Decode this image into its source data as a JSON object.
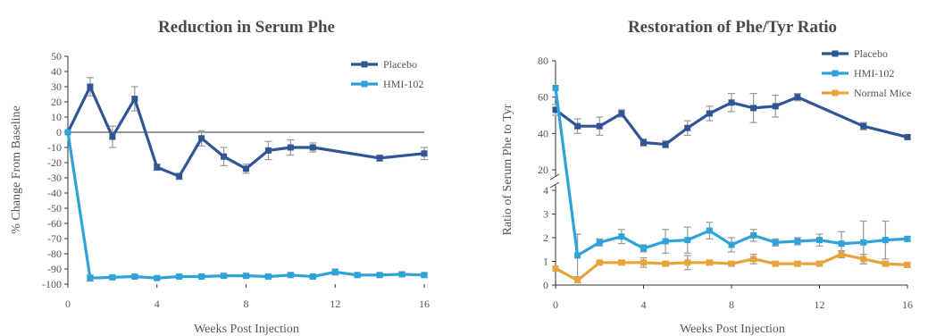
{
  "colors": {
    "placebo": "#2f5597",
    "hmi": "#2ea3d9",
    "normal": "#e8a33a",
    "axis": "#333333",
    "error": "#999999"
  },
  "chart_data": [
    {
      "type": "line",
      "title": "Reduction in Serum Phe",
      "xlabel": "Weeks Post Injection",
      "ylabel": "% Change From Baseline",
      "xlim": [
        0,
        16
      ],
      "ylim": [
        -100,
        50
      ],
      "xticks": [
        "0",
        "4",
        "8",
        "12",
        "16"
      ],
      "yticks": [
        "50",
        "40",
        "30",
        "20",
        "10",
        "0",
        "-10",
        "-20",
        "-30",
        "-40",
        "-50",
        "-60",
        "-70",
        "-80",
        "-90",
        "-100"
      ],
      "legend_position": "top-right",
      "series": [
        {
          "name": "Placebo",
          "x": [
            0,
            1,
            2,
            3,
            4,
            5,
            6,
            7,
            8,
            9,
            10,
            11,
            14,
            16
          ],
          "y": [
            0,
            30,
            -3,
            22,
            -23,
            -29,
            -4,
            -16,
            -24,
            -12,
            -10,
            -10,
            -17,
            -14
          ],
          "err": [
            0,
            6,
            7,
            8,
            2,
            2,
            5,
            6,
            3,
            6,
            5,
            3,
            2,
            4
          ]
        },
        {
          "name": "HMI-102",
          "x": [
            0,
            1,
            2,
            3,
            4,
            5,
            6,
            7,
            8,
            9,
            10,
            11,
            12,
            13,
            14,
            15,
            16
          ],
          "y": [
            0,
            -96,
            -95.5,
            -95,
            -96,
            -95,
            -95,
            -94.5,
            -94.5,
            -95,
            -94,
            -95,
            -92,
            -94,
            -94,
            -93.5,
            -94
          ],
          "err": [
            0,
            2,
            1,
            1,
            1,
            1,
            1,
            1,
            1,
            1,
            1,
            1,
            2,
            1,
            1,
            1,
            1
          ]
        }
      ]
    },
    {
      "type": "line",
      "title": "Restoration of Phe/Tyr Ratio",
      "xlabel": "Weeks Post Injection",
      "ylabel": "Ratio of Serum Phe to Tyr",
      "xlim": [
        0,
        16
      ],
      "ylim": [
        0,
        80
      ],
      "y_axis_break": [
        4,
        20
      ],
      "xticks": [
        "0",
        "4",
        "8",
        "12",
        "16"
      ],
      "yticks_upper": [
        "80",
        "60",
        "40",
        "20"
      ],
      "yticks_lower": [
        "4",
        "3",
        "2",
        "1",
        "0"
      ],
      "legend_position": "top-right",
      "series": [
        {
          "name": "Placebo",
          "x": [
            0,
            1,
            2,
            3,
            4,
            5,
            6,
            7,
            8,
            9,
            10,
            11,
            14,
            16
          ],
          "y": [
            53,
            44,
            44,
            51,
            35,
            34,
            43,
            51,
            57,
            54,
            55,
            60,
            44,
            38
          ],
          "err": [
            3,
            4,
            5,
            2,
            2,
            2,
            4,
            4,
            5,
            8,
            6,
            2,
            2,
            1
          ]
        },
        {
          "name": "HMI-102",
          "x": [
            0,
            1,
            2,
            3,
            4,
            5,
            6,
            7,
            8,
            9,
            10,
            11,
            12,
            13,
            14,
            15,
            16
          ],
          "y": [
            65,
            1.25,
            1.8,
            2.05,
            1.55,
            1.85,
            1.9,
            2.3,
            1.7,
            2.1,
            1.8,
            1.85,
            1.9,
            1.75,
            1.8,
            1.9,
            1.95
          ],
          "err": [
            0,
            0.9,
            0.15,
            0.3,
            0.15,
            0.5,
            0.55,
            0.35,
            0.3,
            0.25,
            0.15,
            0.15,
            0.25,
            0.5,
            0.9,
            0.8,
            0.1
          ]
        },
        {
          "name": "Normal Mice",
          "x": [
            0,
            1,
            2,
            3,
            4,
            5,
            6,
            7,
            8,
            9,
            10,
            11,
            12,
            13,
            14,
            15,
            16
          ],
          "y": [
            0.7,
            0.2,
            0.95,
            0.95,
            0.95,
            0.9,
            0.95,
            0.95,
            0.9,
            1.1,
            0.9,
            0.9,
            0.9,
            1.3,
            1.1,
            0.9,
            0.85
          ],
          "err": [
            0,
            0.1,
            0.05,
            0.1,
            0.2,
            0.1,
            0.3,
            0.1,
            0.1,
            0.2,
            0.1,
            0.1,
            0.1,
            0.15,
            0.2,
            0.1,
            0.1
          ]
        }
      ]
    }
  ]
}
